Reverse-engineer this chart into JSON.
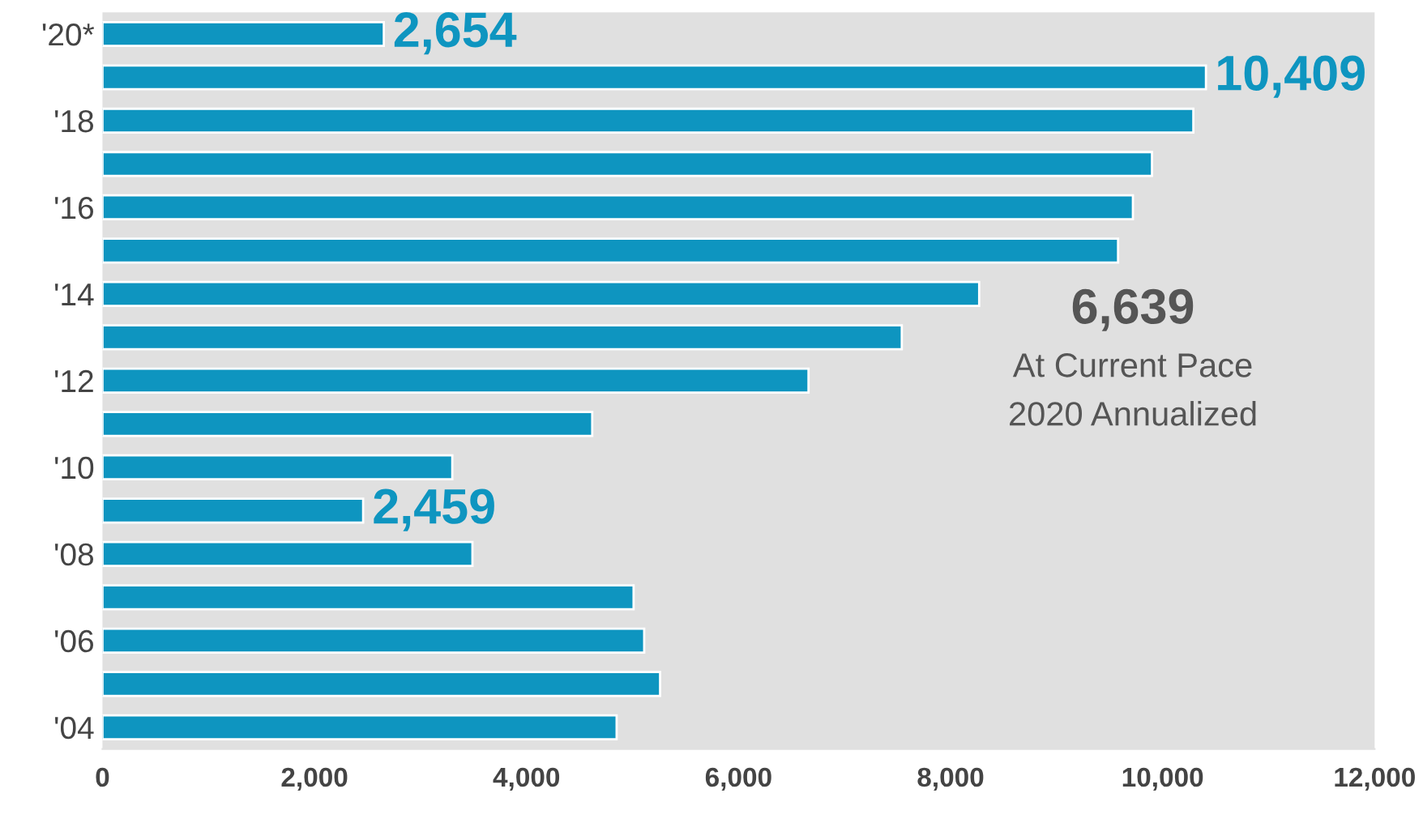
{
  "chart_data": {
    "type": "bar",
    "orientation": "horizontal",
    "categories": [
      "'20*",
      null,
      "'18",
      null,
      "'16",
      null,
      "'14",
      null,
      "'12",
      null,
      "'10",
      null,
      "'08",
      null,
      "'06",
      null,
      "'04"
    ],
    "values": [
      2654,
      10409,
      10290,
      9900,
      9720,
      9580,
      8270,
      7540,
      6660,
      4620,
      3300,
      2459,
      3490,
      5010,
      5110,
      5260,
      4850
    ],
    "value_labels": [
      "2,654",
      "10,409",
      null,
      null,
      null,
      null,
      null,
      null,
      null,
      null,
      null,
      "2,459",
      null,
      null,
      null,
      null,
      null
    ],
    "color": "#0e95c0",
    "xlim": [
      0,
      12000
    ],
    "xticks": [
      0,
      {
        "value": 2000,
        "label": "2,000"
      },
      {
        "value": 4000,
        "label": "4,000"
      },
      {
        "value": 6000,
        "label": "6,000"
      },
      {
        "value": 8000,
        "label": "8,000"
      },
      {
        "value": 10000,
        "label": "10,000"
      },
      {
        "value": 12000,
        "label": "12,000"
      }
    ],
    "annotations": [
      "6,639",
      "At Current Pace",
      "2020 Annualized"
    ],
    "grid": false,
    "legend": false
  }
}
